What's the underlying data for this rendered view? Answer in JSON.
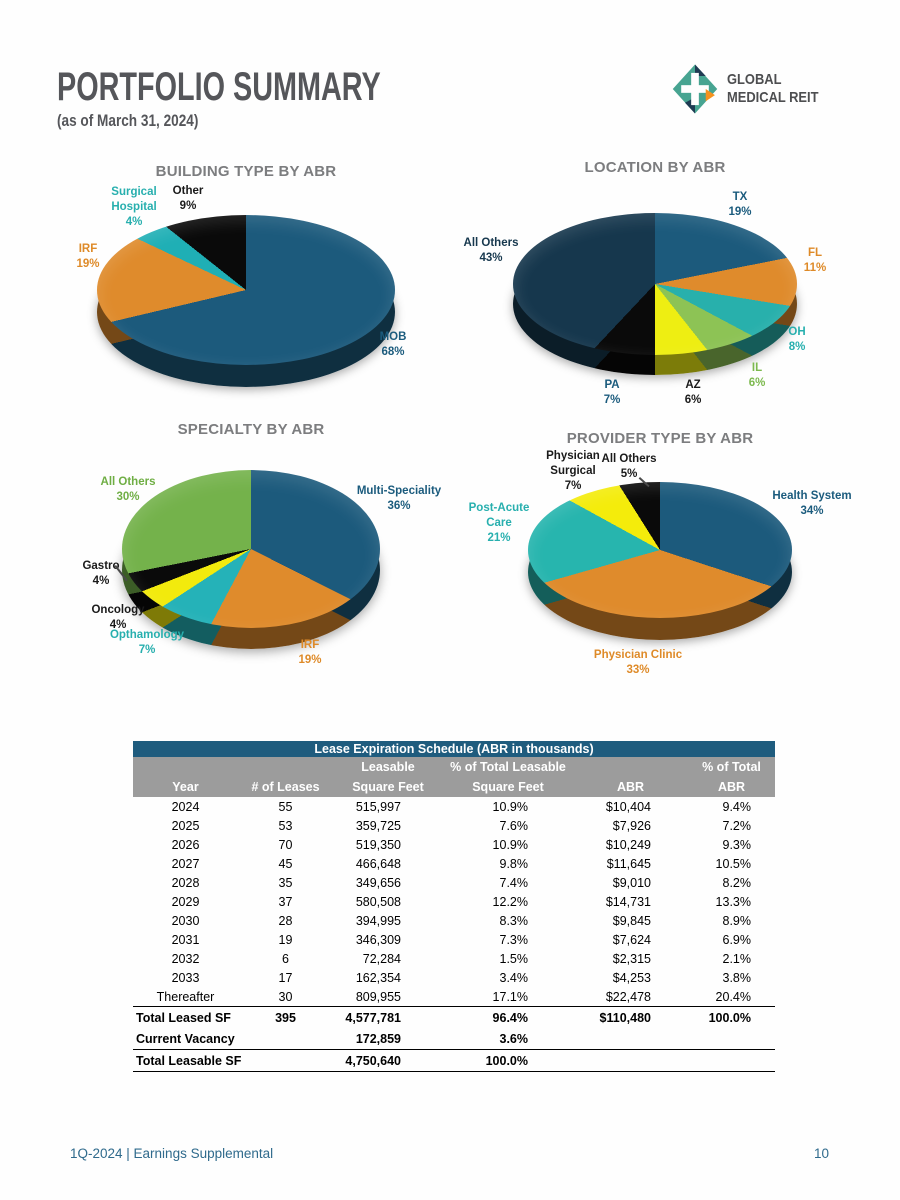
{
  "header": {
    "title": "PORTFOLIO SUMMARY",
    "subtitle": "(as of March 31, 2024)",
    "logo": {
      "line1": "GLOBAL",
      "line2": "MEDICAL REIT",
      "colors": {
        "teal": "#47A491",
        "navy": "#1F3B53",
        "orange": "#F6921E"
      }
    }
  },
  "charts": [
    {
      "title": "BUILDING TYPE BY ABR",
      "slices": [
        {
          "label": "MOB",
          "pct": 68,
          "pct_label": "68%",
          "color": "#1C5A7C",
          "label_color": "#1B5B7D"
        },
        {
          "label": "IRF",
          "pct": 19,
          "pct_label": "19%",
          "color": "#DF8B2C",
          "label_color": "#DE8A28"
        },
        {
          "label": "Surgical Hospital",
          "pct": 4,
          "pct_label": "4%",
          "color": "#1FAFB5",
          "label_color": "#27AFAE"
        },
        {
          "label": "Other",
          "pct": 9,
          "pct_label": "9%",
          "color": "#0A0A0A",
          "label_color": "#1A1A1A"
        }
      ]
    },
    {
      "title": "LOCATION BY ABR",
      "slices": [
        {
          "label": "TX",
          "pct": 19,
          "pct_label": "19%",
          "color": "#1C5A7C",
          "label_color": "#1B5B7D"
        },
        {
          "label": "FL",
          "pct": 11,
          "pct_label": "11%",
          "color": "#DF8B2C",
          "label_color": "#DE8A28"
        },
        {
          "label": "OH",
          "pct": 8,
          "pct_label": "8%",
          "color": "#28B0AC",
          "label_color": "#27AFAE"
        },
        {
          "label": "IL",
          "pct": 6,
          "pct_label": "6%",
          "color": "#8DC355",
          "label_color": "#7CB94E"
        },
        {
          "label": "AZ",
          "pct": 6,
          "pct_label": "6%",
          "color": "#EEEE12",
          "label_color": "#1A1A1A"
        },
        {
          "label": "PA",
          "pct": 7,
          "pct_label": "7%",
          "color": "#0A0A0A",
          "label_color": "#1B5B7D"
        },
        {
          "label": "All Others",
          "pct": 43,
          "pct_label": "43%",
          "color": "#16374D",
          "label_color": "#17384E"
        }
      ]
    },
    {
      "title": "SPECIALTY BY ABR",
      "slices": [
        {
          "label": "Multi-Speciality",
          "pct": 36,
          "pct_label": "36%",
          "color": "#1C5A7C",
          "label_color": "#1B5B7D"
        },
        {
          "label": "IRF",
          "pct": 19,
          "pct_label": "19%",
          "color": "#DF8B2C",
          "label_color": "#DE8A28"
        },
        {
          "label": "Opthamology",
          "pct": 7,
          "pct_label": "7%",
          "color": "#25B2B8",
          "label_color": "#27AFAE"
        },
        {
          "label": "Oncology",
          "pct": 4,
          "pct_label": "4%",
          "color": "#F2EA0D",
          "label_color": "#1A1A1A"
        },
        {
          "label": "Gastro",
          "pct": 4,
          "pct_label": "4%",
          "color": "#0A0A0A",
          "label_color": "#1A1A1A"
        },
        {
          "label": "All Others",
          "pct": 30,
          "pct_label": "30%",
          "color": "#74B24B",
          "label_color": "#6FAE44"
        }
      ]
    },
    {
      "title": "PROVIDER TYPE BY ABR",
      "slices": [
        {
          "label": "Health System",
          "pct": 34,
          "pct_label": "34%",
          "color": "#1C5A7C",
          "label_color": "#1B5B7D"
        },
        {
          "label": "Physician Clinic",
          "pct": 33,
          "pct_label": "33%",
          "color": "#DF8B2C",
          "label_color": "#DE8A28"
        },
        {
          "label": "Post-Acute Care",
          "pct": 21,
          "pct_label": "21%",
          "color": "#27B5AE",
          "label_color": "#27AFAE"
        },
        {
          "label": "Physician Surgical",
          "pct": 7,
          "pct_label": "7%",
          "color": "#F4EC0B",
          "label_color": "#1A1A1A"
        },
        {
          "label": "All Others",
          "pct": 5,
          "pct_label": "5%",
          "color": "#0A0A0A",
          "label_color": "#1A1A1A"
        }
      ]
    }
  ],
  "table": {
    "title": "Lease Expiration Schedule (ABR in thousands)",
    "title_bg": "#1F5C7E",
    "header_bg": "#9C9C9C",
    "header_rows": [
      [
        "",
        "",
        "Leasable",
        "% of Total Leasable",
        "",
        "% of Total"
      ],
      [
        "Year",
        "# of Leases",
        "Square Feet",
        "Square Feet",
        "ABR",
        "ABR"
      ]
    ],
    "rows": [
      {
        "cells": [
          "2024",
          "55",
          "515,997",
          "10.9%",
          "$10,404",
          "9.4%"
        ]
      },
      {
        "cells": [
          "2025",
          "53",
          "359,725",
          "7.6%",
          "$7,926",
          "7.2%"
        ]
      },
      {
        "cells": [
          "2026",
          "70",
          "519,350",
          "10.9%",
          "$10,249",
          "9.3%"
        ]
      },
      {
        "cells": [
          "2027",
          "45",
          "466,648",
          "9.8%",
          "$11,645",
          "10.5%"
        ]
      },
      {
        "cells": [
          "2028",
          "35",
          "349,656",
          "7.4%",
          "$9,010",
          "8.2%"
        ]
      },
      {
        "cells": [
          "2029",
          "37",
          "580,508",
          "12.2%",
          "$14,731",
          "13.3%"
        ]
      },
      {
        "cells": [
          "2030",
          "28",
          "394,995",
          "8.3%",
          "$9,845",
          "8.9%"
        ]
      },
      {
        "cells": [
          "2031",
          "19",
          "346,309",
          "7.3%",
          "$7,624",
          "6.9%"
        ]
      },
      {
        "cells": [
          "2032",
          "6",
          "72,284",
          "1.5%",
          "$2,315",
          "2.1%"
        ]
      },
      {
        "cells": [
          "2033",
          "17",
          "162,354",
          "3.4%",
          "$4,253",
          "3.8%"
        ]
      },
      {
        "cells": [
          "Thereafter",
          "30",
          "809,955",
          "17.1%",
          "$22,478",
          "20.4%"
        ]
      },
      {
        "cells": [
          "Total Leased SF",
          "395",
          "4,577,781",
          "96.4%",
          "$110,480",
          "100.0%"
        ],
        "emphasis": true,
        "top_border": true
      },
      {
        "cells": [
          "Current Vacancy",
          "",
          "172,859",
          "3.6%",
          "",
          ""
        ],
        "emphasis": true
      },
      {
        "cells": [
          "Total Leasable SF",
          "",
          "4,750,640",
          "100.0%",
          "",
          ""
        ],
        "emphasis": true,
        "top_border": true,
        "bottom_border": true
      }
    ]
  },
  "footer": {
    "left": "1Q-2024  |  Earnings Supplemental",
    "page_number": "10"
  },
  "chart_data": [
    {
      "type": "pie",
      "title": "BUILDING TYPE BY ABR",
      "labels": [
        "MOB",
        "IRF",
        "Surgical Hospital",
        "Other"
      ],
      "values": [
        68,
        19,
        4,
        9
      ],
      "unit": "%",
      "colors": [
        "#1C5A7C",
        "#DF8B2C",
        "#1FAFB5",
        "#0A0A0A"
      ],
      "style": "3d-pie",
      "start_angle": "12-oclock-clockwise"
    },
    {
      "type": "pie",
      "title": "LOCATION BY ABR",
      "labels": [
        "TX",
        "FL",
        "OH",
        "IL",
        "AZ",
        "PA",
        "All Others"
      ],
      "values": [
        19,
        11,
        8,
        6,
        6,
        7,
        43
      ],
      "unit": "%",
      "colors": [
        "#1C5A7C",
        "#DF8B2C",
        "#28B0AC",
        "#8DC355",
        "#EEEE12",
        "#0A0A0A",
        "#16374D"
      ],
      "style": "3d-pie",
      "start_angle": "12-oclock-clockwise"
    },
    {
      "type": "pie",
      "title": "SPECIALTY BY ABR",
      "labels": [
        "Multi-Speciality",
        "IRF",
        "Opthamology",
        "Oncology",
        "Gastro",
        "All Others"
      ],
      "values": [
        36,
        19,
        7,
        4,
        4,
        30
      ],
      "unit": "%",
      "colors": [
        "#1C5A7C",
        "#DF8B2C",
        "#25B2B8",
        "#F2EA0D",
        "#0A0A0A",
        "#74B24B"
      ],
      "style": "3d-pie",
      "start_angle": "12-oclock-clockwise"
    },
    {
      "type": "pie",
      "title": "PROVIDER TYPE BY ABR",
      "labels": [
        "Health System",
        "Physician Clinic",
        "Post-Acute Care",
        "Physician Surgical",
        "All Others"
      ],
      "values": [
        34,
        33,
        21,
        7,
        5
      ],
      "unit": "%",
      "colors": [
        "#1C5A7C",
        "#DF8B2C",
        "#27B5AE",
        "#F4EC0B",
        "#0A0A0A"
      ],
      "style": "3d-pie",
      "start_angle": "12-oclock-clockwise"
    },
    {
      "type": "table",
      "title": "Lease Expiration Schedule (ABR in thousands)",
      "columns": [
        "Year",
        "# of Leases",
        "Leasable Square Feet",
        "% of Total Leasable Square Feet",
        "ABR",
        "% of Total ABR"
      ],
      "rows": [
        [
          "2024",
          "55",
          "515,997",
          "10.9%",
          "$10,404",
          "9.4%"
        ],
        [
          "2025",
          "53",
          "359,725",
          "7.6%",
          "$7,926",
          "7.2%"
        ],
        [
          "2026",
          "70",
          "519,350",
          "10.9%",
          "$10,249",
          "9.3%"
        ],
        [
          "2027",
          "45",
          "466,648",
          "9.8%",
          "$11,645",
          "10.5%"
        ],
        [
          "2028",
          "35",
          "349,656",
          "7.4%",
          "$9,010",
          "8.2%"
        ],
        [
          "2029",
          "37",
          "580,508",
          "12.2%",
          "$14,731",
          "13.3%"
        ],
        [
          "2030",
          "28",
          "394,995",
          "8.3%",
          "$9,845",
          "8.9%"
        ],
        [
          "2031",
          "19",
          "346,309",
          "7.3%",
          "$7,624",
          "6.9%"
        ],
        [
          "2032",
          "6",
          "72,284",
          "1.5%",
          "$2,315",
          "2.1%"
        ],
        [
          "2033",
          "17",
          "162,354",
          "3.4%",
          "$4,253",
          "3.8%"
        ],
        [
          "Thereafter",
          "30",
          "809,955",
          "17.1%",
          "$22,478",
          "20.4%"
        ],
        [
          "Total Leased SF",
          "395",
          "4,577,781",
          "96.4%",
          "$110,480",
          "100.0%"
        ],
        [
          "Current Vacancy",
          "",
          "172,859",
          "3.6%",
          "",
          ""
        ],
        [
          "Total Leasable SF",
          "",
          "4,750,640",
          "100.0%",
          "",
          ""
        ]
      ]
    }
  ]
}
